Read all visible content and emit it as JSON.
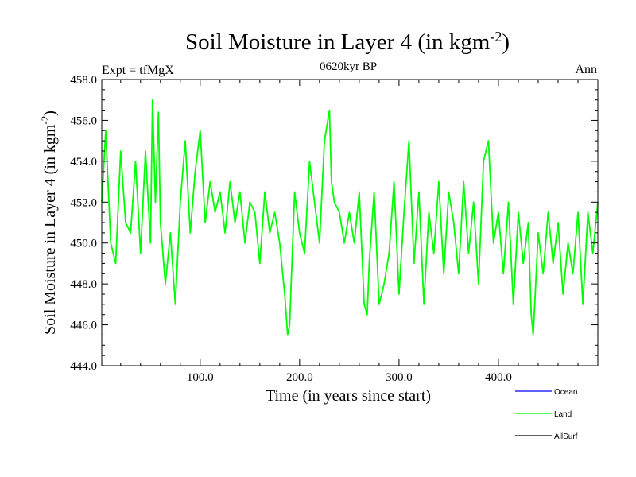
{
  "chart_data": {
    "type": "line",
    "title": "Soil Moisture in Layer 4 (in kgm",
    "title_sup": "-2",
    "title_end": ")",
    "subtitle_left": "Expt = tfMgX",
    "subtitle_center": "0620kyr BP",
    "subtitle_right": "Ann",
    "xlabel": "Time (in years since start)",
    "ylabel": "Soil Moisture in Layer 4 (in kgm",
    "ylabel_sup": "-2",
    "ylabel_end": ")",
    "xlim": [
      1,
      500
    ],
    "ylim": [
      444,
      458
    ],
    "xticks": [
      100,
      200,
      300,
      400
    ],
    "xtick_labels": [
      "100.0",
      "200.0",
      "300.0",
      "400.0"
    ],
    "yticks": [
      444,
      446,
      448,
      450,
      452,
      454,
      456,
      458
    ],
    "ytick_labels": [
      "444.0",
      "446.0",
      "448.0",
      "450.0",
      "452.0",
      "454.0",
      "456.0",
      "458.0"
    ],
    "grid": false,
    "legend_position": "bottom-right",
    "legend": [
      {
        "name": "Ocean",
        "color": "#0000ff"
      },
      {
        "name": "Land",
        "color": "#00ff00"
      },
      {
        "name": "AllSurf",
        "color": "#000000"
      }
    ],
    "series": [
      {
        "name": "Land",
        "color": "#00ff00",
        "x": [
          1,
          5,
          10,
          15,
          20,
          25,
          30,
          35,
          40,
          45,
          50,
          52,
          55,
          58,
          60,
          65,
          70,
          75,
          80,
          85,
          90,
          95,
          100,
          105,
          110,
          115,
          120,
          125,
          130,
          135,
          140,
          145,
          150,
          155,
          160,
          165,
          170,
          175,
          180,
          185,
          188,
          190,
          195,
          200,
          205,
          210,
          215,
          220,
          225,
          230,
          232,
          235,
          240,
          245,
          250,
          255,
          260,
          265,
          268,
          270,
          275,
          280,
          285,
          290,
          295,
          300,
          305,
          310,
          315,
          320,
          325,
          330,
          335,
          340,
          345,
          350,
          355,
          360,
          365,
          370,
          375,
          380,
          385,
          390,
          395,
          400,
          405,
          410,
          415,
          420,
          425,
          430,
          433,
          435,
          440,
          445,
          450,
          455,
          460,
          465,
          470,
          475,
          480,
          485,
          490,
          495,
          500
        ],
        "y": [
          452,
          455.5,
          450,
          449,
          454.5,
          451,
          450.5,
          454,
          449.5,
          454.5,
          450,
          457,
          452,
          456.4,
          451,
          448,
          450.5,
          447,
          452,
          455,
          450.5,
          453.5,
          455.5,
          451,
          453,
          451.5,
          452.5,
          450.5,
          453,
          451,
          452.5,
          450,
          452,
          451.5,
          449,
          452.5,
          450.5,
          451.5,
          450,
          447.5,
          445.5,
          446,
          452.5,
          450.5,
          449.5,
          454,
          452,
          450,
          455,
          456.5,
          453,
          452,
          451.5,
          450,
          451.5,
          450,
          452.5,
          447,
          446.5,
          449,
          452.5,
          447,
          448,
          449.5,
          453,
          447.5,
          451.5,
          455,
          449,
          452.5,
          447,
          451.5,
          449.5,
          453,
          448.5,
          452.5,
          451,
          448.5,
          453,
          449.5,
          452,
          448,
          454,
          455,
          450,
          451.5,
          448.5,
          452,
          447,
          451.5,
          449,
          451,
          446.5,
          445.5,
          450.5,
          448.5,
          451.5,
          449,
          451,
          447.5,
          450,
          448.5,
          451.5,
          447,
          451.5,
          449.5,
          452
        ]
      }
    ]
  }
}
